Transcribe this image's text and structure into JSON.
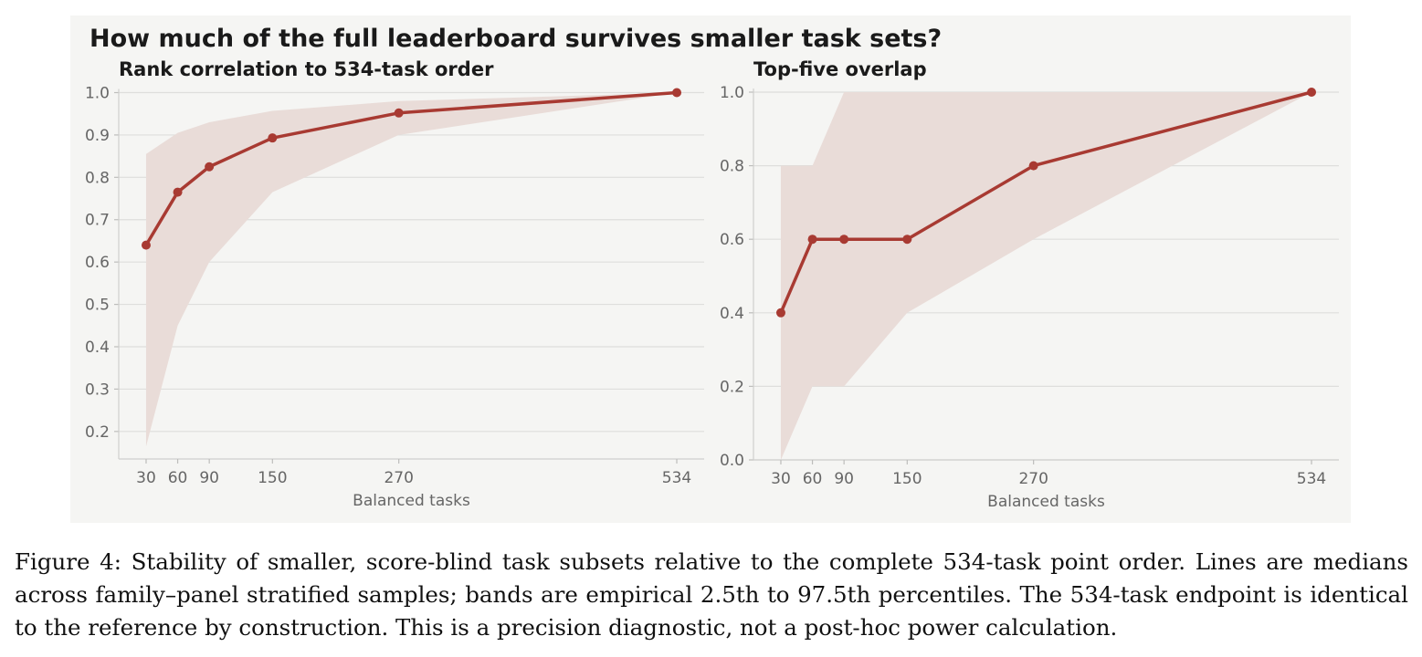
{
  "figure": {
    "suptitle": "How much of the full leaderboard survives smaller task sets?",
    "caption": "Figure 4: Stability of smaller, score-blind task subsets relative to the complete 534-task point order. Lines are medians across family–panel stratified samples; bands are empirical 2.5th to 97.5th percentiles. The 534-task endpoint is identical to the reference by construction. This is a precision diagnostic, not a post-hoc power calculation."
  },
  "chart_data": [
    {
      "type": "line",
      "title": "Rank correlation to 534-task order",
      "xlabel": "Balanced tasks",
      "ylabel": "",
      "x": [
        30,
        60,
        90,
        150,
        270,
        534
      ],
      "xticks": [
        "30",
        "60",
        "90",
        "150",
        "270",
        "534"
      ],
      "yticks": [
        "0.2",
        "0.3",
        "0.4",
        "0.5",
        "0.6",
        "0.7",
        "0.8",
        "0.9",
        "1.0"
      ],
      "ytick_values": [
        0.2,
        0.3,
        0.4,
        0.5,
        0.6,
        0.7,
        0.8,
        0.9,
        1.0
      ],
      "xlim": [
        4,
        560
      ],
      "ylim": [
        0.135,
        1.0
      ],
      "grid": true,
      "series": [
        {
          "values": [
            0.64,
            0.765,
            0.825,
            0.893,
            0.952,
            1.0
          ],
          "band_low": [
            0.165,
            0.45,
            0.6,
            0.765,
            0.9,
            1.0
          ],
          "band_high": [
            0.855,
            0.905,
            0.93,
            0.957,
            0.98,
            1.0
          ],
          "color": "#a83a32",
          "band_color": "#e9dcd8"
        }
      ]
    },
    {
      "type": "line",
      "title": "Top-five overlap",
      "xlabel": "Balanced tasks",
      "ylabel": "",
      "x": [
        30,
        60,
        90,
        150,
        270,
        534
      ],
      "xticks": [
        "30",
        "60",
        "90",
        "150",
        "270",
        "534"
      ],
      "yticks": [
        "0.0",
        "0.2",
        "0.4",
        "0.6",
        "0.8",
        "1.0"
      ],
      "ytick_values": [
        0.0,
        0.2,
        0.4,
        0.6,
        0.8,
        1.0
      ],
      "xlim": [
        4,
        560
      ],
      "ylim": [
        0.0,
        1.0
      ],
      "grid": true,
      "series": [
        {
          "values": [
            0.4,
            0.6,
            0.6,
            0.6,
            0.8,
            1.0
          ],
          "band_low": [
            0.0,
            0.2,
            0.2,
            0.4,
            0.6,
            1.0
          ],
          "band_high": [
            0.8,
            0.8,
            1.0,
            1.0,
            1.0,
            1.0
          ],
          "color": "#a83a32",
          "band_color": "#e9dcd8"
        }
      ]
    }
  ]
}
